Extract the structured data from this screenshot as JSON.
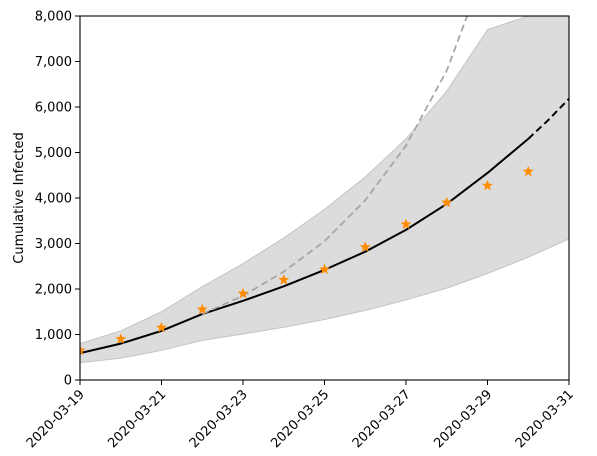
{
  "chart_data": {
    "type": "line",
    "title": "",
    "xlabel": "",
    "ylabel": "Cumulative Infected",
    "x_type": "date",
    "xlim": [
      "2020-03-19",
      "2020-03-31"
    ],
    "ylim": [
      0,
      8000
    ],
    "x_ticks": [
      "2020-03-19",
      "2020-03-21",
      "2020-03-23",
      "2020-03-25",
      "2020-03-27",
      "2020-03-29",
      "2020-03-31"
    ],
    "y_ticks": [
      0,
      1000,
      2000,
      3000,
      4000,
      5000,
      6000,
      7000,
      8000
    ],
    "y_tick_labels": [
      "0",
      "1,000",
      "2,000",
      "3,000",
      "4,000",
      "5,000",
      "6,000",
      "7,000",
      "8,000"
    ],
    "grid": false,
    "legend": "none",
    "colors": {
      "band_fill": "#dcdcdc",
      "band_edge": "#c4c4c4",
      "fit_line": "#000000",
      "alt_projection": "#a6a6a6",
      "observed": "#ff8c00"
    },
    "series": [
      {
        "kind": "band",
        "x": [
          "2020-03-19",
          "2020-03-20",
          "2020-03-21",
          "2020-03-22",
          "2020-03-23",
          "2020-03-24",
          "2020-03-25",
          "2020-03-26",
          "2020-03-27",
          "2020-03-28",
          "2020-03-29",
          "2020-03-30",
          "2020-03-30T12",
          "2020-03-31"
        ],
        "lower": [
          380,
          480,
          650,
          870,
          1010,
          1160,
          1330,
          1530,
          1760,
          2020,
          2340,
          2700,
          2900,
          3100
        ],
        "upper": [
          800,
          1080,
          1500,
          2050,
          2560,
          3120,
          3750,
          4460,
          5300,
          6350,
          7700,
          8000,
          8000,
          8000
        ]
      },
      {
        "kind": "line",
        "style": "solid",
        "color": "fit_line",
        "x": [
          "2020-03-19",
          "2020-03-20",
          "2020-03-21",
          "2020-03-22",
          "2020-03-23",
          "2020-03-24",
          "2020-03-25",
          "2020-03-26",
          "2020-03-27",
          "2020-03-28",
          "2020-03-29",
          "2020-03-30"
        ],
        "y": [
          590,
          800,
          1080,
          1450,
          1740,
          2060,
          2420,
          2820,
          3300,
          3870,
          4550,
          5300
        ]
      },
      {
        "kind": "line",
        "style": "dashed",
        "color": "fit_line",
        "x": [
          "2020-03-30",
          "2020-03-30T12",
          "2020-03-31"
        ],
        "y": [
          5300,
          5720,
          6180
        ]
      },
      {
        "kind": "line",
        "style": "dashed",
        "color": "alt_projection",
        "x": [
          "2020-03-22",
          "2020-03-23",
          "2020-03-24",
          "2020-03-25",
          "2020-03-26",
          "2020-03-27",
          "2020-03-28",
          "2020-03-28T12"
        ],
        "y": [
          1450,
          1850,
          2380,
          3050,
          3950,
          5150,
          6800,
          8000
        ]
      },
      {
        "kind": "scatter",
        "marker": "star",
        "color": "observed",
        "x": [
          "2020-03-19",
          "2020-03-20",
          "2020-03-21",
          "2020-03-22",
          "2020-03-23",
          "2020-03-24",
          "2020-03-25",
          "2020-03-26",
          "2020-03-27",
          "2020-03-28",
          "2020-03-29",
          "2020-03-30"
        ],
        "y": [
          650,
          900,
          1150,
          1550,
          1900,
          2200,
          2430,
          2920,
          3420,
          3900,
          4270,
          4580
        ]
      }
    ]
  }
}
